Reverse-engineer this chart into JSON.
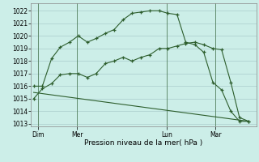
{
  "xlabel": "Pression niveau de la mer( hPa )",
  "bg_color": "#cceee8",
  "grid_color": "#aacccc",
  "line_color": "#2d5e2d",
  "ylim": [
    1012.8,
    1022.6
  ],
  "yticks": [
    1013,
    1014,
    1015,
    1016,
    1017,
    1018,
    1019,
    1020,
    1021,
    1022
  ],
  "day_labels": [
    "Dim",
    "Mer",
    "Lun",
    "Mar"
  ],
  "day_positions": [
    0.08,
    0.85,
    2.6,
    3.55
  ],
  "vline_positions": [
    0.08,
    0.85,
    2.6,
    3.55
  ],
  "xlim": [
    -0.05,
    4.35
  ],
  "line1_x": [
    0.0,
    0.17,
    0.35,
    0.52,
    0.7,
    0.87,
    1.05,
    1.22,
    1.4,
    1.57,
    1.75,
    1.92,
    2.1,
    2.27,
    2.45,
    2.62,
    2.8,
    2.97,
    3.15,
    3.32,
    3.5,
    3.67,
    3.85,
    4.02,
    4.2
  ],
  "line1_y": [
    1016.0,
    1016.0,
    1018.2,
    1019.1,
    1019.5,
    1020.0,
    1019.5,
    1019.8,
    1020.2,
    1020.5,
    1021.3,
    1021.8,
    1021.9,
    1022.0,
    1022.0,
    1021.8,
    1021.7,
    1019.5,
    1019.3,
    1018.7,
    1016.3,
    1015.7,
    1014.0,
    1013.2,
    1013.2
  ],
  "line2_x": [
    0.0,
    0.17,
    0.35,
    0.52,
    0.7,
    0.87,
    1.05,
    1.22,
    1.4,
    1.57,
    1.75,
    1.92,
    2.1,
    2.27,
    2.45,
    2.62,
    2.8,
    2.97,
    3.15,
    3.32,
    3.5,
    3.67,
    3.85,
    4.02,
    4.2
  ],
  "line2_y": [
    1015.0,
    1015.8,
    1016.2,
    1016.9,
    1017.0,
    1017.0,
    1016.7,
    1017.0,
    1017.8,
    1018.0,
    1018.3,
    1018.0,
    1018.3,
    1018.5,
    1019.0,
    1019.0,
    1019.2,
    1019.4,
    1019.5,
    1019.3,
    1019.0,
    1018.9,
    1016.3,
    1013.5,
    1013.2
  ],
  "line3_x": [
    0.0,
    4.2
  ],
  "line3_y": [
    1015.5,
    1013.2
  ]
}
